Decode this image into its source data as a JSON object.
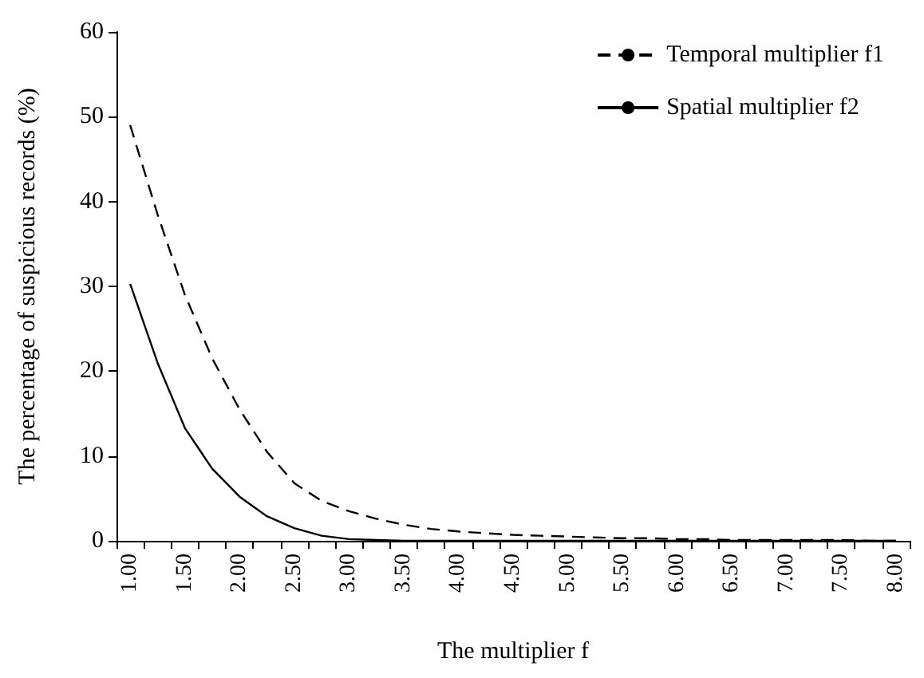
{
  "chart_data": {
    "type": "line",
    "xlabel": "The multiplier f",
    "ylabel": "The percentage of suspicious records (%)",
    "categories": [
      "1.00",
      null,
      "1.50",
      null,
      "2.00",
      null,
      "2.50",
      null,
      "3.00",
      null,
      "3.50",
      null,
      "4.00",
      null,
      "4.50",
      null,
      "5.00",
      null,
      "5.50",
      null,
      "6.00",
      null,
      "6.50",
      null,
      "7.00",
      null,
      "7.50",
      null,
      "8.00"
    ],
    "series": [
      {
        "name": "Temporal multiplier f1",
        "color": "#000000",
        "line_style": "dashed",
        "values": [
          49,
          38.5,
          29,
          21.5,
          15.5,
          10.5,
          6.8,
          4.7,
          3.5,
          2.6,
          1.9,
          1.4,
          1.1,
          0.9,
          0.7,
          0.6,
          0.5,
          0.4,
          0.3,
          0.3,
          0.2,
          0.2,
          0.1,
          0.1,
          0.1,
          0.1,
          0.1,
          0,
          0
        ]
      },
      {
        "name": "Spatial multiplier f2",
        "color": "#000000",
        "line_style": "solid",
        "values": [
          30.3,
          21,
          13.3,
          8.5,
          5.2,
          2.9,
          1.5,
          0.6,
          0.2,
          0.1,
          0,
          0,
          0,
          0,
          0,
          0,
          0,
          0,
          0,
          0,
          0,
          0,
          0,
          0,
          0,
          0,
          0,
          0,
          0
        ]
      }
    ],
    "ylim": [
      0,
      60
    ],
    "yticks": [
      0,
      10,
      20,
      30,
      40,
      50,
      60
    ],
    "grid": false,
    "legend": "top right",
    "marker": "none"
  }
}
